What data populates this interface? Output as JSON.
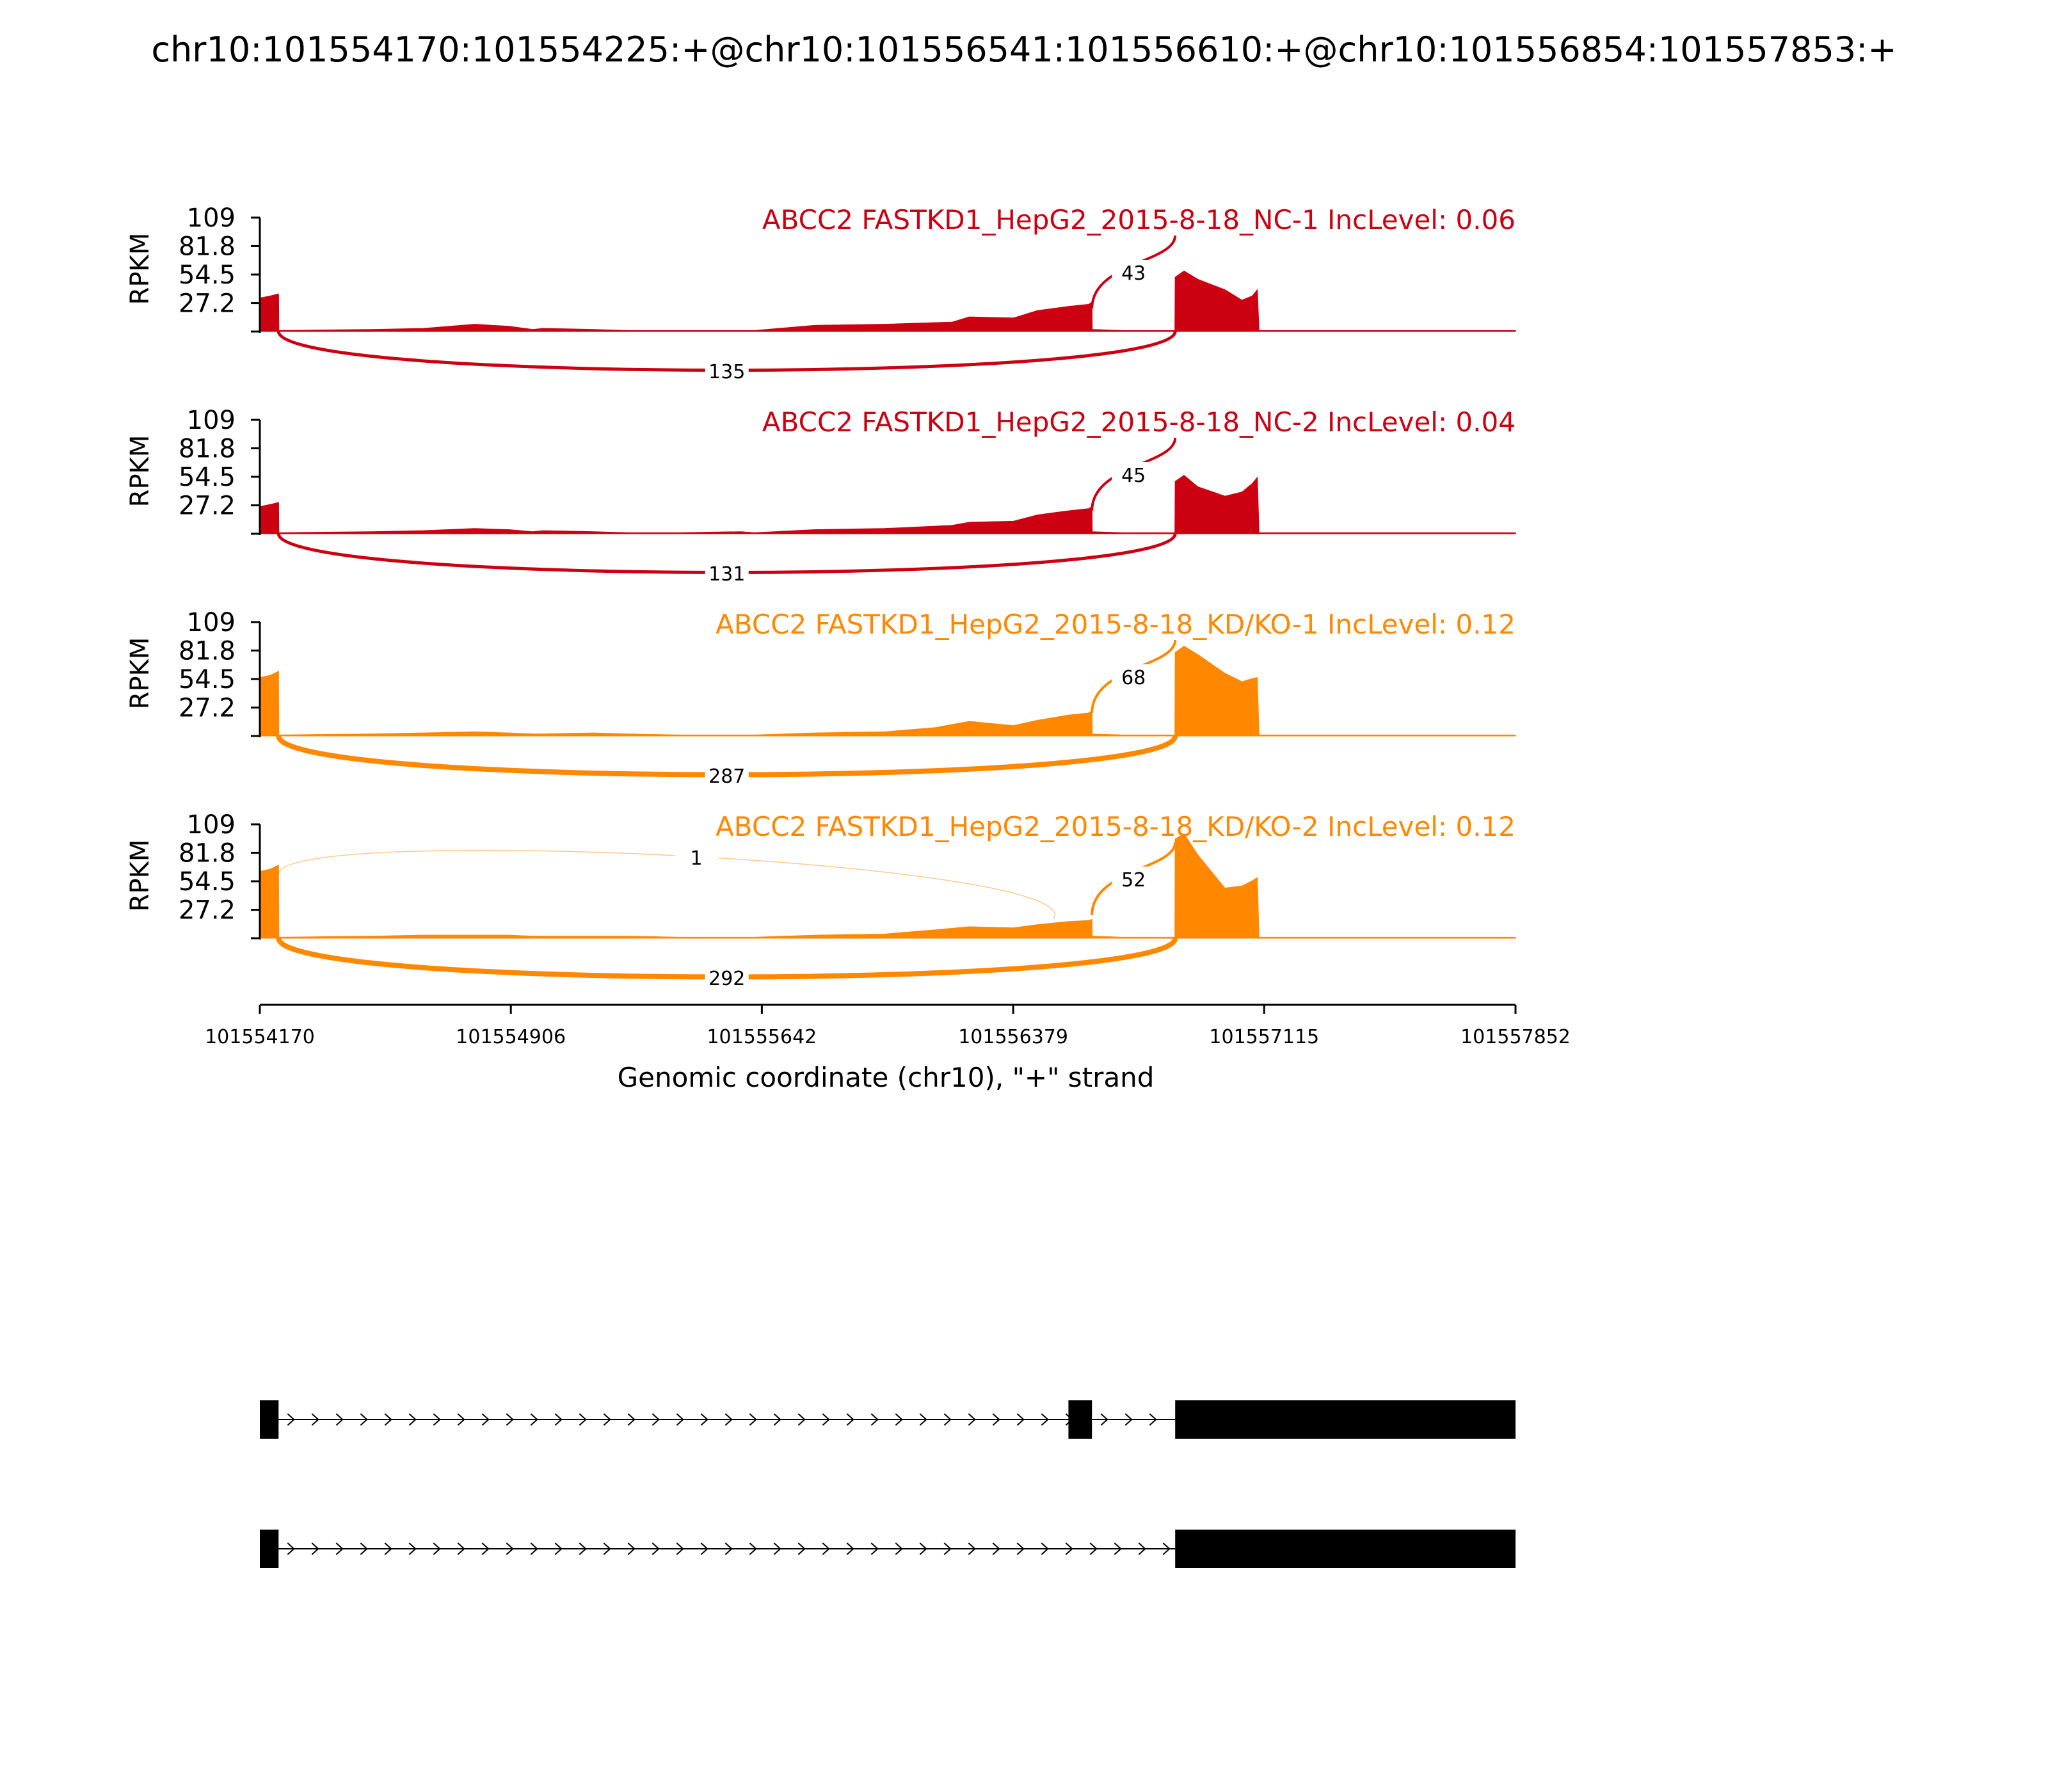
{
  "chart_data": {
    "type": "area",
    "title": "chr10:101554170:101554225:+@chr10:101556541:101556610:+@chr10:101556854:101557853:+",
    "xlabel": "Genomic coordinate (chr10), \"+\" strand",
    "ylabel": "RPKM",
    "xlim": [
      101554170,
      101557852
    ],
    "x_ticks": [
      "101554170",
      "101554906",
      "101555642",
      "101556379",
      "101557115",
      "101557852"
    ],
    "ylim": [
      0,
      109
    ],
    "y_ticks": [
      "109",
      "81.8",
      "54.5",
      "27.2"
    ],
    "exons": [
      {
        "start": 101554170,
        "end": 101554225
      },
      {
        "start": 101556541,
        "end": 101556610
      },
      {
        "start": 101556854,
        "end": 101557853
      }
    ],
    "panels": [
      {
        "title": "ABCC2 FASTKD1_HepG2_2015-8-18_NC-1 IncLevel: 0.06",
        "color": "#cc0011",
        "coverage": [
          [
            101554170,
            32
          ],
          [
            101554200,
            34
          ],
          [
            101554225,
            36
          ],
          [
            101554226,
            1
          ],
          [
            101554500,
            2
          ],
          [
            101554650,
            3
          ],
          [
            101554800,
            7
          ],
          [
            101554900,
            5
          ],
          [
            101554970,
            2
          ],
          [
            101555000,
            3
          ],
          [
            101555150,
            2
          ],
          [
            101555250,
            1
          ],
          [
            101555400,
            1
          ],
          [
            101555580,
            1
          ],
          [
            101555620,
            1
          ],
          [
            101555800,
            6
          ],
          [
            101556000,
            7
          ],
          [
            101556200,
            9
          ],
          [
            101556250,
            14
          ],
          [
            101556380,
            13
          ],
          [
            101556450,
            20
          ],
          [
            101556541,
            24
          ],
          [
            101556600,
            26
          ],
          [
            101556610,
            28
          ],
          [
            101556611,
            2
          ],
          [
            101556700,
            1
          ],
          [
            101556853,
            1
          ],
          [
            101556854,
            52
          ],
          [
            101556880,
            58
          ],
          [
            101556920,
            50
          ],
          [
            101557000,
            40
          ],
          [
            101557050,
            30
          ],
          [
            101557080,
            34
          ],
          [
            101557095,
            40
          ],
          [
            101557100,
            1
          ],
          [
            101557300,
            1
          ],
          [
            101557600,
            1
          ],
          [
            101557852,
            1
          ]
        ],
        "junctions": [
          {
            "from": 101554225,
            "to": 101556854,
            "count": "135",
            "side": "below"
          },
          {
            "from": 101556610,
            "to": 101556854,
            "count": "43",
            "side": "above"
          }
        ]
      },
      {
        "title": "ABCC2 FASTKD1_HepG2_2015-8-18_NC-2 IncLevel: 0.04",
        "color": "#cc0011",
        "coverage": [
          [
            101554170,
            26
          ],
          [
            101554200,
            28
          ],
          [
            101554225,
            30
          ],
          [
            101554226,
            1
          ],
          [
            101554500,
            2
          ],
          [
            101554650,
            3
          ],
          [
            101554800,
            5
          ],
          [
            101554900,
            4
          ],
          [
            101554970,
            2
          ],
          [
            101555000,
            3
          ],
          [
            101555150,
            2
          ],
          [
            101555250,
            1
          ],
          [
            101555400,
            1
          ],
          [
            101555580,
            2
          ],
          [
            101555620,
            1
          ],
          [
            101555800,
            4
          ],
          [
            101556000,
            5
          ],
          [
            101556200,
            8
          ],
          [
            101556250,
            11
          ],
          [
            101556380,
            12
          ],
          [
            101556450,
            18
          ],
          [
            101556541,
            22
          ],
          [
            101556600,
            24
          ],
          [
            101556610,
            26
          ],
          [
            101556611,
            2
          ],
          [
            101556700,
            1
          ],
          [
            101556853,
            1
          ],
          [
            101556854,
            50
          ],
          [
            101556880,
            56
          ],
          [
            101556920,
            45
          ],
          [
            101557000,
            36
          ],
          [
            101557050,
            40
          ],
          [
            101557080,
            48
          ],
          [
            101557095,
            54
          ],
          [
            101557100,
            1
          ],
          [
            101557300,
            1
          ],
          [
            101557600,
            1
          ],
          [
            101557852,
            1
          ]
        ],
        "junctions": [
          {
            "from": 101554225,
            "to": 101556854,
            "count": "131",
            "side": "below"
          },
          {
            "from": 101556610,
            "to": 101556854,
            "count": "45",
            "side": "above"
          }
        ]
      },
      {
        "title": "ABCC2 FASTKD1_HepG2_2015-8-18_KD/KO-1 IncLevel: 0.12",
        "color": "#ff8800",
        "coverage": [
          [
            101554170,
            56
          ],
          [
            101554200,
            58
          ],
          [
            101554225,
            62
          ],
          [
            101554226,
            1
          ],
          [
            101554500,
            2
          ],
          [
            101554650,
            3
          ],
          [
            101554800,
            4
          ],
          [
            101554900,
            3
          ],
          [
            101554970,
            2
          ],
          [
            101555000,
            2
          ],
          [
            101555150,
            3
          ],
          [
            101555250,
            2
          ],
          [
            101555400,
            1
          ],
          [
            101555580,
            1
          ],
          [
            101555620,
            1
          ],
          [
            101555800,
            3
          ],
          [
            101556000,
            4
          ],
          [
            101556150,
            8
          ],
          [
            101556250,
            14
          ],
          [
            101556380,
            10
          ],
          [
            101556450,
            15
          ],
          [
            101556541,
            20
          ],
          [
            101556600,
            22
          ],
          [
            101556610,
            24
          ],
          [
            101556611,
            2
          ],
          [
            101556700,
            1
          ],
          [
            101556853,
            1
          ],
          [
            101556854,
            80
          ],
          [
            101556880,
            86
          ],
          [
            101556920,
            78
          ],
          [
            101557000,
            60
          ],
          [
            101557050,
            52
          ],
          [
            101557080,
            55
          ],
          [
            101557095,
            56
          ],
          [
            101557100,
            1
          ],
          [
            101557300,
            1
          ],
          [
            101557600,
            1
          ],
          [
            101557852,
            1
          ]
        ],
        "junctions": [
          {
            "from": 101554225,
            "to": 101556854,
            "count": "287",
            "side": "below"
          },
          {
            "from": 101556610,
            "to": 101556854,
            "count": "68",
            "side": "above"
          }
        ]
      },
      {
        "title": "ABCC2 FASTKD1_HepG2_2015-8-18_KD/KO-2 IncLevel: 0.12",
        "color": "#ff8800",
        "coverage": [
          [
            101554170,
            64
          ],
          [
            101554200,
            66
          ],
          [
            101554225,
            70
          ],
          [
            101554226,
            1
          ],
          [
            101554500,
            2
          ],
          [
            101554650,
            3
          ],
          [
            101554800,
            3
          ],
          [
            101554900,
            3
          ],
          [
            101554970,
            2
          ],
          [
            101555000,
            2
          ],
          [
            101555150,
            2
          ],
          [
            101555250,
            2
          ],
          [
            101555400,
            1
          ],
          [
            101555580,
            1
          ],
          [
            101555620,
            1
          ],
          [
            101555800,
            3
          ],
          [
            101556000,
            4
          ],
          [
            101556150,
            8
          ],
          [
            101556250,
            11
          ],
          [
            101556380,
            10
          ],
          [
            101556450,
            13
          ],
          [
            101556541,
            16
          ],
          [
            101556600,
            17
          ],
          [
            101556610,
            18
          ],
          [
            101556611,
            2
          ],
          [
            101556700,
            1
          ],
          [
            101556853,
            1
          ],
          [
            101556854,
            95
          ],
          [
            101556880,
            100
          ],
          [
            101556920,
            80
          ],
          [
            101557000,
            48
          ],
          [
            101557050,
            50
          ],
          [
            101557080,
            55
          ],
          [
            101557095,
            58
          ],
          [
            101557100,
            1
          ],
          [
            101557300,
            1
          ],
          [
            101557600,
            1
          ],
          [
            101557852,
            1
          ]
        ],
        "junctions": [
          {
            "from": 101554225,
            "to": 101556854,
            "count": "292",
            "side": "below"
          },
          {
            "from": 101556610,
            "to": 101556854,
            "count": "52",
            "side": "above"
          },
          {
            "from": 101554225,
            "to": 101556610,
            "count": "1",
            "side": "above"
          }
        ]
      }
    ],
    "transcripts": [
      {
        "exons": [
          [
            101554170,
            101554225
          ],
          [
            101556541,
            101556610
          ],
          [
            101556854,
            101557852
          ]
        ]
      },
      {
        "exons": [
          [
            101554170,
            101554225
          ],
          [
            101556854,
            101557852
          ]
        ]
      }
    ]
  }
}
